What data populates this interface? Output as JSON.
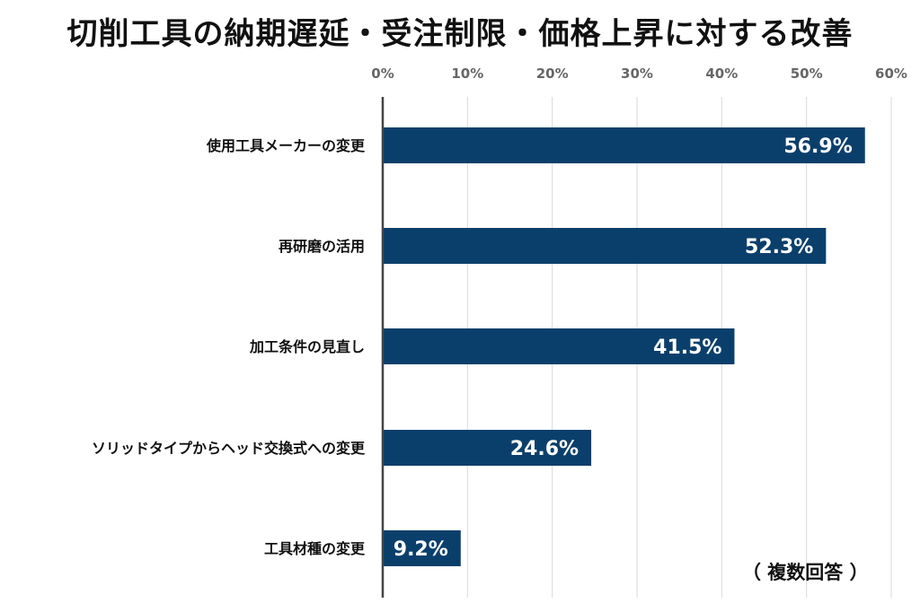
{
  "chart_data": {
    "type": "bar",
    "orientation": "horizontal",
    "title": "切削工具の納期遅延・受注制限・価格上昇に対する改善",
    "note": "（ 複数回答 ）",
    "categories": [
      "使用工具メーカーの変更",
      "再研磨の活用",
      "加工条件の見直し",
      "ソリッドタイプからヘッド交換式への変更",
      "工具材種の変更"
    ],
    "values": [
      56.9,
      52.3,
      41.5,
      24.6,
      9.2
    ],
    "value_labels": [
      "56.9%",
      "52.3%",
      "41.5%",
      "24.6%",
      "9.2%"
    ],
    "xlim": [
      0,
      60
    ],
    "xticks": [
      0,
      10,
      20,
      30,
      40,
      50,
      60
    ],
    "xtick_labels": [
      "0%",
      "10%",
      "20%",
      "30%",
      "40%",
      "50%",
      "60%"
    ],
    "xaxis_position": "top",
    "grid": true,
    "legend": "none",
    "bar_color": "#0b3f6b",
    "grid_color": "#d9d9d9",
    "axis_color": "#444444"
  }
}
